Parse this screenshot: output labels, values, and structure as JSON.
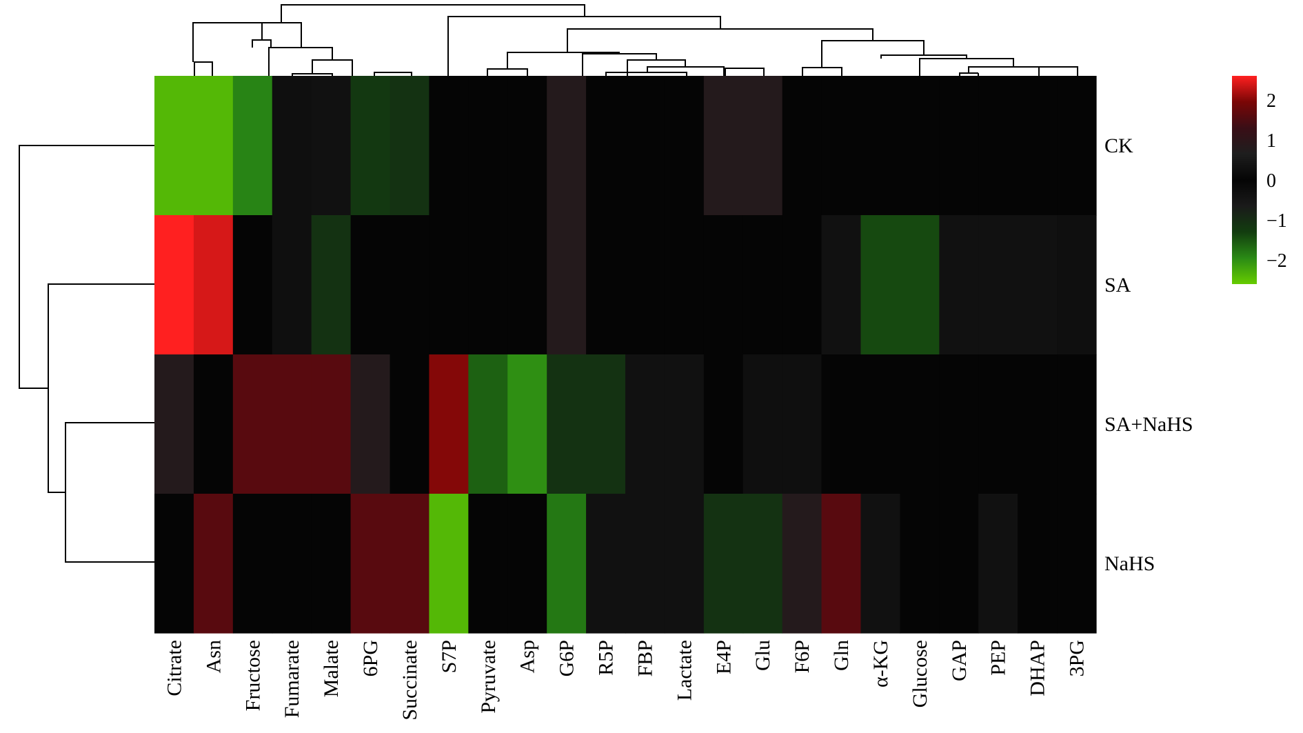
{
  "chart_data": {
    "type": "heatmap",
    "title": "",
    "xlabel": "",
    "ylabel": "",
    "columns": [
      "Citrate",
      "Asn",
      "Fructose",
      "Fumarate",
      "Malate",
      "6PG",
      "Succinate",
      "S7P",
      "Pyruvate",
      "Asp",
      "G6P",
      "R5P",
      "FBP",
      "Lactate",
      "E4P",
      "Glu",
      "F6P",
      "Gln",
      "α-KG",
      "Glucose",
      "GAP",
      "PEP",
      "DHAP",
      "3PG"
    ],
    "rows": [
      "CK",
      "SA",
      "SA+NaHS",
      "NaHS"
    ],
    "values": [
      [
        -2.4,
        -2.4,
        -1.9,
        -0.3,
        0.3,
        -1.2,
        -1.1,
        0.0,
        0.0,
        0.0,
        0.8,
        0.0,
        0.0,
        0.0,
        0.8,
        0.8,
        0.0,
        0.0,
        0.0,
        0.0,
        0.0,
        0.0,
        0.0,
        0.0
      ],
      [
        2.6,
        2.4,
        0.0,
        -0.3,
        -1.1,
        0.0,
        0.0,
        0.0,
        0.0,
        0.0,
        0.8,
        0.0,
        0.0,
        0.0,
        0.0,
        0.0,
        0.0,
        0.3,
        -1.4,
        -1.4,
        0.3,
        0.3,
        0.3,
        -0.3
      ],
      [
        0.8,
        0.0,
        1.6,
        1.6,
        1.6,
        0.8,
        0.0,
        2.0,
        -1.6,
        -2.0,
        -1.1,
        -1.1,
        0.3,
        0.3,
        0.0,
        -0.3,
        -0.3,
        0.0,
        0.0,
        0.0,
        0.0,
        0.0,
        0.0,
        0.0
      ],
      [
        0.0,
        1.6,
        0.0,
        0.0,
        0.0,
        1.6,
        1.6,
        -2.4,
        0.0,
        0.0,
        -1.8,
        0.3,
        0.3,
        0.3,
        -1.1,
        -1.1,
        0.8,
        1.6,
        0.3,
        0.0,
        0.0,
        0.3,
        0.0,
        0.0
      ]
    ],
    "color_scale": {
      "min": -2.6,
      "max": 2.6,
      "ticks": [
        2,
        1,
        0,
        -1,
        -2
      ],
      "tick_labels": [
        "2",
        "1",
        "0",
        "−1",
        "−2"
      ],
      "colors": [
        "#66cc00",
        "#2a8a15",
        "#123d0f",
        "#1a1a1a",
        "#050505",
        "#1e1e1e",
        "#3a0e16",
        "#7a0606",
        "#ff2020"
      ],
      "position": "right"
    },
    "legend": "right",
    "grid": false,
    "dendrograms": [
      "top",
      "left"
    ]
  }
}
